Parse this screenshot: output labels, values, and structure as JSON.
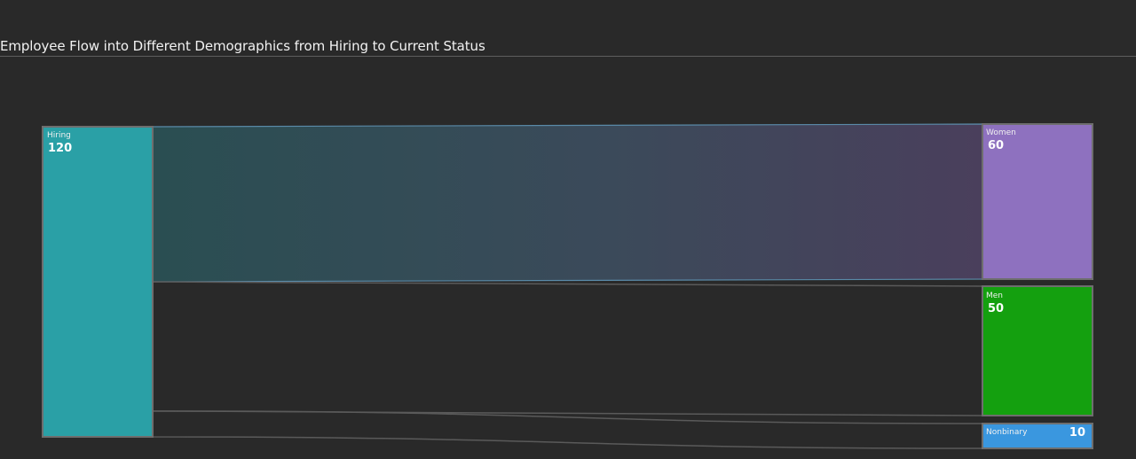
{
  "title": "Employee Flow into Different Demographics from Hiring to Current Status",
  "colors": {
    "background": "#292929",
    "border": "#6e6e6e",
    "link_stroke": "#5a5a5a"
  },
  "chart_data": {
    "type": "sankey",
    "title": "Employee Flow into Different Demographics from Hiring to Current Status",
    "nodes": [
      {
        "id": "hiring",
        "name": "Hiring",
        "value": 120,
        "color": "#2aa0a6"
      },
      {
        "id": "women",
        "name": "Women",
        "value": 60,
        "color": "#8e71bf"
      },
      {
        "id": "men",
        "name": "Men",
        "value": 50,
        "color": "#14a00f"
      },
      {
        "id": "nonbinary",
        "name": "Nonbinary",
        "value": 10,
        "color": "#3a97df"
      }
    ],
    "links": [
      {
        "source": "hiring",
        "target": "women",
        "value": 60
      },
      {
        "source": "hiring",
        "target": "men",
        "value": 50
      },
      {
        "source": "hiring",
        "target": "nonbinary",
        "value": 10
      }
    ]
  }
}
